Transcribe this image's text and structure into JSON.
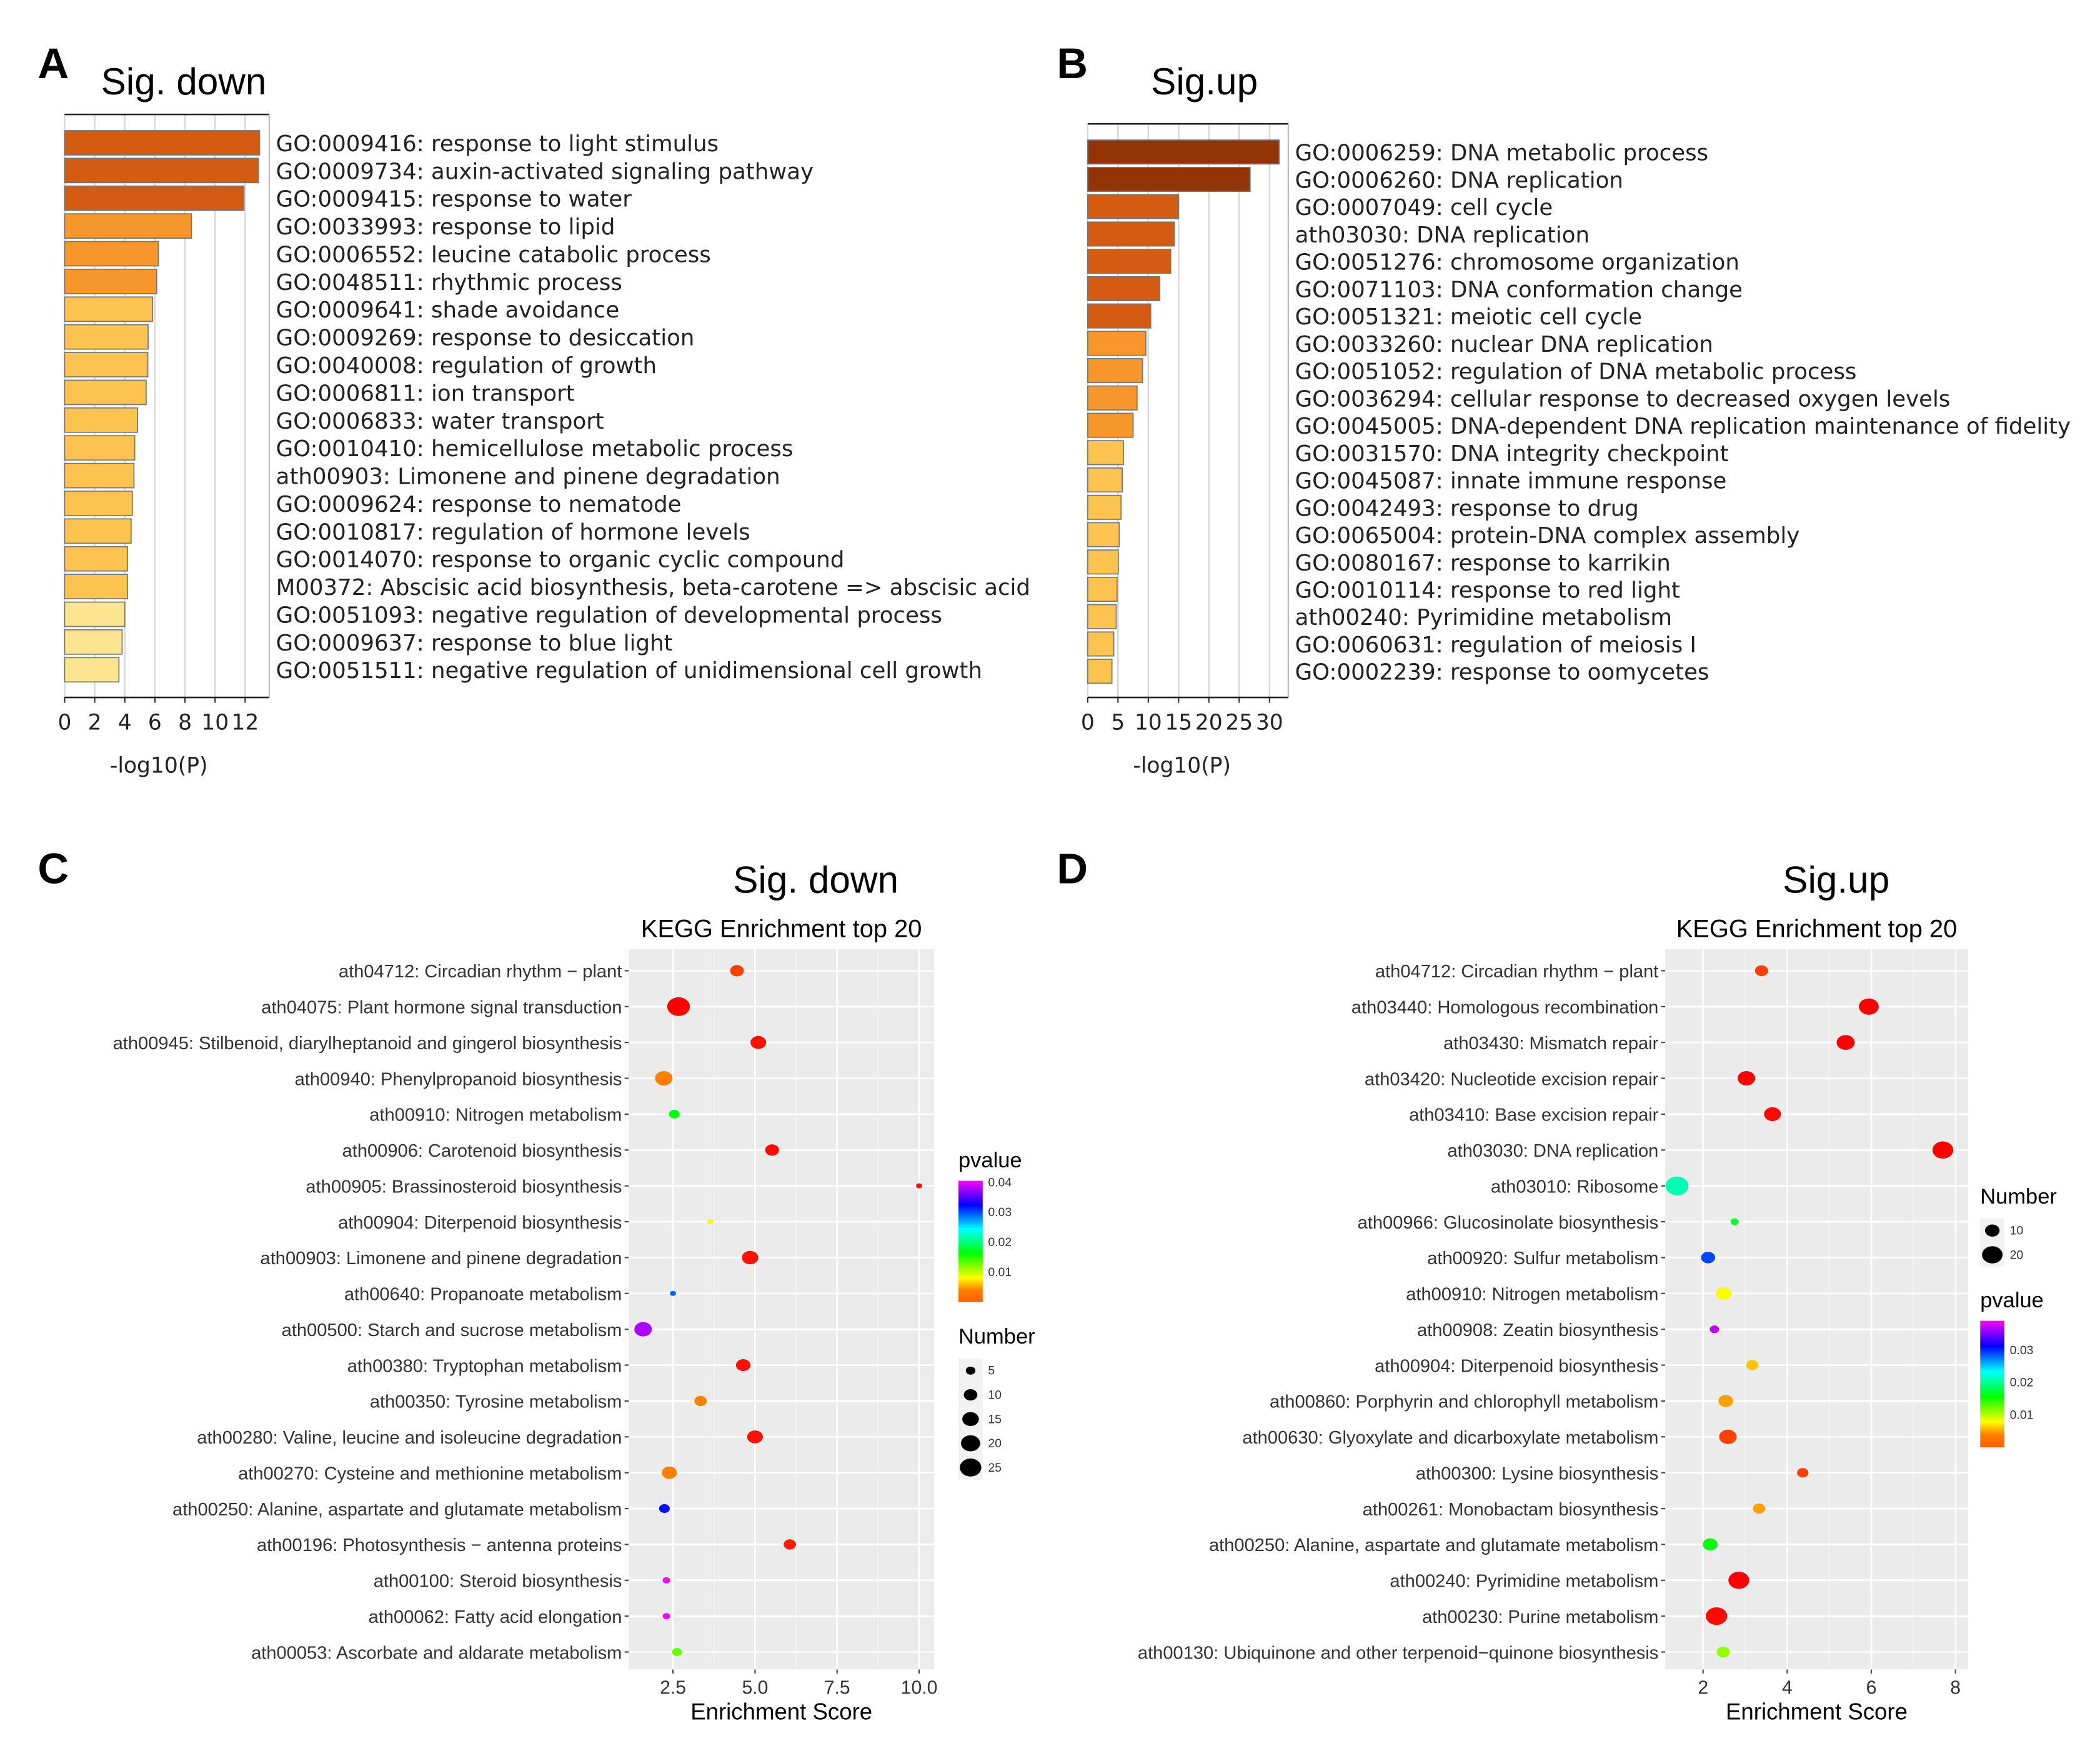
{
  "panel_labels": [
    "A",
    "B",
    "C",
    "D"
  ],
  "chart_data": [
    {
      "type": "bar",
      "orientation": "horizontal",
      "panel": "A",
      "title": "Sig. down",
      "xlabel": "-log10(P)",
      "xlim": [
        0,
        13.6
      ],
      "xticks": [
        "0",
        "2",
        "4",
        "6",
        "8",
        "10",
        "12"
      ],
      "xtick_values": [
        0,
        2,
        4,
        6,
        8,
        10,
        12
      ],
      "grid": true,
      "categories": [
        "GO:0009416: response to light stimulus",
        "GO:0009734: auxin-activated signaling pathway",
        "GO:0009415: response to water",
        "GO:0033993: response to lipid",
        "GO:0006552: leucine catabolic process",
        "GO:0048511: rhythmic process",
        "GO:0009641: shade avoidance",
        "GO:0009269: response to desiccation",
        "GO:0040008: regulation of growth",
        "GO:0006811: ion transport",
        "GO:0006833: water transport",
        "GO:0010410: hemicellulose metabolic process",
        "ath00903: Limonene and pinene degradation",
        "GO:0009624: response to nematode",
        "GO:0010817: regulation of hormone levels",
        "GO:0014070: response to organic cyclic compound",
        "M00372: Abscisic acid biosynthesis, beta-carotene => abscisic acid",
        "GO:0051093: negative regulation of developmental process",
        "GO:0009637: response to blue light",
        "GO:0051511: negative regulation of unidimensional cell growth"
      ],
      "values": [
        12.96,
        12.88,
        11.92,
        8.43,
        6.23,
        6.12,
        5.85,
        5.55,
        5.53,
        5.42,
        4.85,
        4.66,
        4.61,
        4.5,
        4.42,
        4.18,
        4.18,
        4.0,
        3.82,
        3.61
      ],
      "colors": [
        "#d45b12",
        "#d45b12",
        "#d45b12",
        "#f7962a",
        "#f7962a",
        "#f7962a",
        "#fdc350",
        "#fdc350",
        "#fdc350",
        "#fdc350",
        "#fdc350",
        "#fdc350",
        "#fdc350",
        "#fdc350",
        "#fdc350",
        "#fdc350",
        "#fdc350",
        "#fde491",
        "#fde491",
        "#fde491"
      ]
    },
    {
      "type": "bar",
      "orientation": "horizontal",
      "panel": "B",
      "title": "Sig.up",
      "xlabel": "-log10(P)",
      "xlim": [
        0,
        33.1
      ],
      "xticks": [
        "0",
        "5",
        "10",
        "15",
        "20",
        "25",
        "30"
      ],
      "xtick_values": [
        0,
        5,
        10,
        15,
        20,
        25,
        30
      ],
      "grid": true,
      "categories": [
        "GO:0006259: DNA metabolic process",
        "GO:0006260: DNA replication",
        "GO:0007049: cell cycle",
        "ath03030: DNA replication",
        "GO:0051276: chromosome organization",
        "GO:0071103: DNA conformation change",
        "GO:0051321: meiotic cell cycle",
        "GO:0033260: nuclear DNA replication",
        "GO:0051052: regulation of DNA metabolic process",
        "GO:0036294: cellular response to decreased oxygen levels",
        "GO:0045005: DNA-dependent DNA replication maintenance of fidelity",
        "GO:0031570: DNA integrity checkpoint",
        "GO:0045087: innate immune response",
        "GO:0042493: response to drug",
        "GO:0065004: protein-DNA complex assembly",
        "GO:0080167: response to karrikin",
        "GO:0010114: response to red light",
        "ath00240: Pyrimidine metabolism",
        "GO:0060631: regulation of meiosis I",
        "GO:0002239: response to oomycetes"
      ],
      "values": [
        31.6,
        26.8,
        15.0,
        14.3,
        13.7,
        11.9,
        10.4,
        9.6,
        9.05,
        8.15,
        7.5,
        5.9,
        5.7,
        5.5,
        5.2,
        5.05,
        4.85,
        4.7,
        4.3,
        4.0
      ],
      "colors": [
        "#933407",
        "#933407",
        "#d45b12",
        "#d45b12",
        "#d45b12",
        "#d45b12",
        "#d45b12",
        "#f7962a",
        "#f7962a",
        "#f7962a",
        "#f7962a",
        "#fdc350",
        "#fdc350",
        "#fdc350",
        "#fdc350",
        "#fdc350",
        "#fdc350",
        "#fdc350",
        "#fdc350",
        "#fdc350"
      ]
    },
    {
      "type": "scatter",
      "panel": "C",
      "title": "Sig. down",
      "subtitle": "KEGG Enrichment top 20",
      "xlabel": "Enrichment Score",
      "xlim": [
        1.15,
        10.46
      ],
      "xticks": [
        "2.5",
        "5.0",
        "7.5",
        "10.0"
      ],
      "xtick_values": [
        2.5,
        5.0,
        7.5,
        10.0
      ],
      "grid": true,
      "categories": [
        "ath04712: Circadian rhythm − plant",
        "ath04075: Plant hormone signal transduction",
        "ath00945: Stilbenoid, diarylheptanoid and gingerol biosynthesis",
        "ath00940: Phenylpropanoid biosynthesis",
        "ath00910: Nitrogen metabolism",
        "ath00906: Carotenoid biosynthesis",
        "ath00905: Brassinosteroid biosynthesis",
        "ath00904: Diterpenoid biosynthesis",
        "ath00903: Limonene and pinene degradation",
        "ath00640: Propanoate metabolism",
        "ath00500: Starch and sucrose metabolism",
        "ath00380: Tryptophan metabolism",
        "ath00350: Tyrosine metabolism",
        "ath00280: Valine, leucine and isoleucine degradation",
        "ath00270: Cysteine and methionine metabolism",
        "ath00250: Alanine, aspartate and glutamate metabolism",
        "ath00196: Photosynthesis − antenna proteins",
        "ath00100: Steroid biosynthesis",
        "ath00062: Fatty acid elongation",
        "ath00053: Ascorbate and aldarate metabolism"
      ],
      "x": [
        4.45,
        2.67,
        5.1,
        2.22,
        2.54,
        5.52,
        10.0,
        3.64,
        4.85,
        2.5,
        1.59,
        4.64,
        3.34,
        5.0,
        2.39,
        2.24,
        6.06,
        2.3,
        2.3,
        2.62
      ],
      "number": [
        10,
        27,
        13,
        16,
        6,
        10,
        2,
        2,
        14,
        2,
        16,
        11,
        8,
        13,
        12,
        6,
        8,
        3,
        3,
        5
      ],
      "pvalue": [
        0.002,
        0.0,
        0.0005,
        0.004,
        0.017,
        0.0003,
        0.0005,
        0.008,
        0.0005,
        0.029,
        0.038,
        0.0005,
        0.004,
        0.0005,
        0.004,
        0.032,
        0.001,
        0.041,
        0.041,
        0.013
      ],
      "legend_pvalue": {
        "title": "pvalue",
        "ticks": [
          "0.04",
          "0.03",
          "0.02",
          "0.01"
        ],
        "tick_values": [
          0.04,
          0.03,
          0.02,
          0.01
        ],
        "range": [
          0,
          0.0405
        ]
      },
      "legend_number": {
        "title": "Number",
        "labels": [
          "5",
          "10",
          "15",
          "20",
          "25"
        ],
        "values": [
          5,
          10,
          15,
          20,
          25
        ]
      },
      "legend_placement": "right"
    },
    {
      "type": "scatter",
      "panel": "D",
      "title": "Sig.up",
      "subtitle": "KEGG Enrichment top 20",
      "xlabel": "Enrichment Score",
      "xlim": [
        1.1,
        8.3
      ],
      "xticks": [
        "2",
        "4",
        "6",
        "8"
      ],
      "xtick_values": [
        2,
        4,
        6,
        8
      ],
      "grid": true,
      "categories": [
        "ath04712: Circadian rhythm − plant",
        "ath03440: Homologous recombination",
        "ath03430: Mismatch repair",
        "ath03420: Nucleotide excision repair",
        "ath03410: Base excision repair",
        "ath03030: DNA replication",
        "ath03010: Ribosome",
        "ath00966: Glucosinolate biosynthesis",
        "ath00920: Sulfur metabolism",
        "ath00910: Nitrogen metabolism",
        "ath00908: Zeatin biosynthesis",
        "ath00904: Diterpenoid biosynthesis",
        "ath00860: Porphyrin and chlorophyll metabolism",
        "ath00630: Glyoxylate and dicarboxylate metabolism",
        "ath00300: Lysine biosynthesis",
        "ath00261: Monobactam biosynthesis",
        "ath00250: Alanine, aspartate and glutamate metabolism",
        "ath00240: Pyrimidine metabolism",
        "ath00230: Purine metabolism",
        "ath00130: Ubiquinone and other terpenoid−quinone biosynthesis"
      ],
      "x": [
        3.39,
        5.94,
        5.39,
        3.03,
        3.65,
        7.7,
        1.38,
        2.75,
        2.12,
        2.49,
        2.27,
        3.17,
        2.54,
        2.59,
        4.37,
        3.33,
        2.17,
        2.85,
        2.32,
        2.48
      ],
      "number": [
        8,
        18,
        15,
        14,
        13,
        20,
        24,
        3,
        9,
        11,
        4,
        7,
        10,
        14,
        6,
        7,
        10,
        20,
        21,
        8
      ],
      "pvalue": [
        0.002,
        0.0,
        0.0,
        0.0,
        0.0003,
        0.0,
        0.021,
        0.017,
        0.029,
        0.008,
        0.037,
        0.006,
        0.005,
        0.002,
        0.002,
        0.005,
        0.016,
        0.0,
        0.0003,
        0.011
      ],
      "legend_pvalue": {
        "title": "pvalue",
        "ticks": [
          "0.03",
          "0.02",
          "0.01"
        ],
        "tick_values": [
          0.03,
          0.02,
          0.01
        ],
        "range": [
          0,
          0.039
        ]
      },
      "legend_number": {
        "title": "Number",
        "labels": [
          "10",
          "20"
        ],
        "values": [
          10,
          20
        ]
      },
      "legend_placement": "right"
    }
  ]
}
